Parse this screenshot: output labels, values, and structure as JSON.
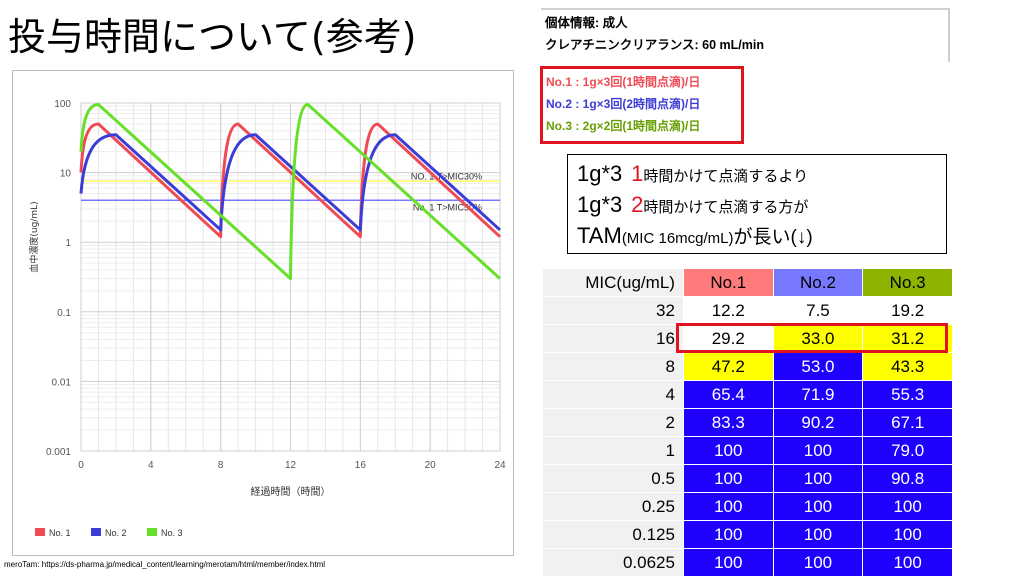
{
  "slide": {
    "title": "投与時間について(参考)",
    "source": "meroTam: https://ds-pharma.jp/medical_content/learning/merotam/html/member/index.html"
  },
  "patient": {
    "line1": "個体情報: 成人",
    "line2": "クレアチニンクリアランス: 60 mL/min"
  },
  "regimens": [
    {
      "label": "No.1 : 1g×3回(1時間点滴)/日",
      "color": "#ef4b55"
    },
    {
      "label": "No.2 : 1g×3回(2時間点滴)/日",
      "color": "#3c3cd6"
    },
    {
      "label": "No.3 : 2g×2回(1時間点滴)/日",
      "color": "#66a000"
    }
  ],
  "conclusion": {
    "l1_a": "1g*3",
    "l1_num": "1",
    "l1_b": "時間かけて点滴するより",
    "l2_a": "1g*3",
    "l2_num": "2",
    "l2_b": "時間かけて点滴する方が",
    "l3_a": "TAM",
    "l3_b": "(MIC 16mcg/mL)",
    "l3_c": "が長い(↓)"
  },
  "colors": {
    "no1": "#ef4b55",
    "no2": "#3c3cd6",
    "no3": "#66e028",
    "hdr1": "#ff7b7b",
    "hdr2": "#7878ff",
    "hdr3": "#8cb400",
    "blue_cell": "#1e00ff",
    "yellow_cell": "#ffff00",
    "highlight": "#e0141e"
  },
  "table": {
    "headers": [
      "MIC(ug/mL)",
      "No.1",
      "No.2",
      "No.3"
    ],
    "rows": [
      {
        "mic": "32",
        "v": [
          "12.2",
          "7.5",
          "19.2"
        ],
        "s": [
          "w",
          "w",
          "w"
        ]
      },
      {
        "mic": "16",
        "v": [
          "29.2",
          "33.0",
          "31.2"
        ],
        "s": [
          "w",
          "y",
          "y"
        ]
      },
      {
        "mic": "8",
        "v": [
          "47.2",
          "53.0",
          "43.3"
        ],
        "s": [
          "y",
          "b",
          "y"
        ]
      },
      {
        "mic": "4",
        "v": [
          "65.4",
          "71.9",
          "55.3"
        ],
        "s": [
          "b",
          "b",
          "b"
        ]
      },
      {
        "mic": "2",
        "v": [
          "83.3",
          "90.2",
          "67.1"
        ],
        "s": [
          "b",
          "b",
          "b"
        ]
      },
      {
        "mic": "1",
        "v": [
          "100",
          "100",
          "79.0"
        ],
        "s": [
          "b",
          "b",
          "b"
        ]
      },
      {
        "mic": "0.5",
        "v": [
          "100",
          "100",
          "90.8"
        ],
        "s": [
          "b",
          "b",
          "b"
        ]
      },
      {
        "mic": "0.25",
        "v": [
          "100",
          "100",
          "100"
        ],
        "s": [
          "b",
          "b",
          "b"
        ]
      },
      {
        "mic": "0.125",
        "v": [
          "100",
          "100",
          "100"
        ],
        "s": [
          "b",
          "b",
          "b"
        ]
      },
      {
        "mic": "0.0625",
        "v": [
          "100",
          "100",
          "100"
        ],
        "s": [
          "b",
          "b",
          "b"
        ]
      }
    ]
  },
  "chart_data": {
    "type": "line",
    "ylabel": "血中濃度(ug/mL)",
    "xlabel": "経過時間（時間）",
    "yscale": "log",
    "ylim": [
      0.001,
      100
    ],
    "xlim": [
      0,
      24
    ],
    "xticks": [
      "0",
      "4",
      "8",
      "12",
      "16",
      "20",
      "24"
    ],
    "yticks": [
      "100",
      "10",
      "1",
      "0.1",
      "0.01",
      "0.001"
    ],
    "legend_position": "bottom",
    "reference_lines": [
      {
        "label": "NO. 1 T>MIC30%",
        "y": 7.5,
        "color": "#ffff66"
      },
      {
        "label": "No. 1 T>MIC50%",
        "y": 4.0,
        "color": "#7878ff"
      }
    ],
    "series": [
      {
        "name": "No. 1",
        "color": "#ef4b55",
        "x": [
          0,
          1,
          8,
          9,
          16,
          17,
          24
        ],
        "y": [
          10,
          50,
          1.2,
          50,
          1.2,
          50,
          1.2
        ]
      },
      {
        "name": "No. 2",
        "color": "#3c3cd6",
        "x": [
          0,
          2,
          8,
          10,
          16,
          18,
          24
        ],
        "y": [
          5,
          35,
          1.5,
          35,
          1.5,
          35,
          1.5
        ]
      },
      {
        "name": "No. 3",
        "color": "#66e028",
        "x": [
          0,
          1,
          12,
          13,
          24
        ],
        "y": [
          20,
          95,
          0.3,
          95,
          0.3
        ]
      }
    ]
  }
}
